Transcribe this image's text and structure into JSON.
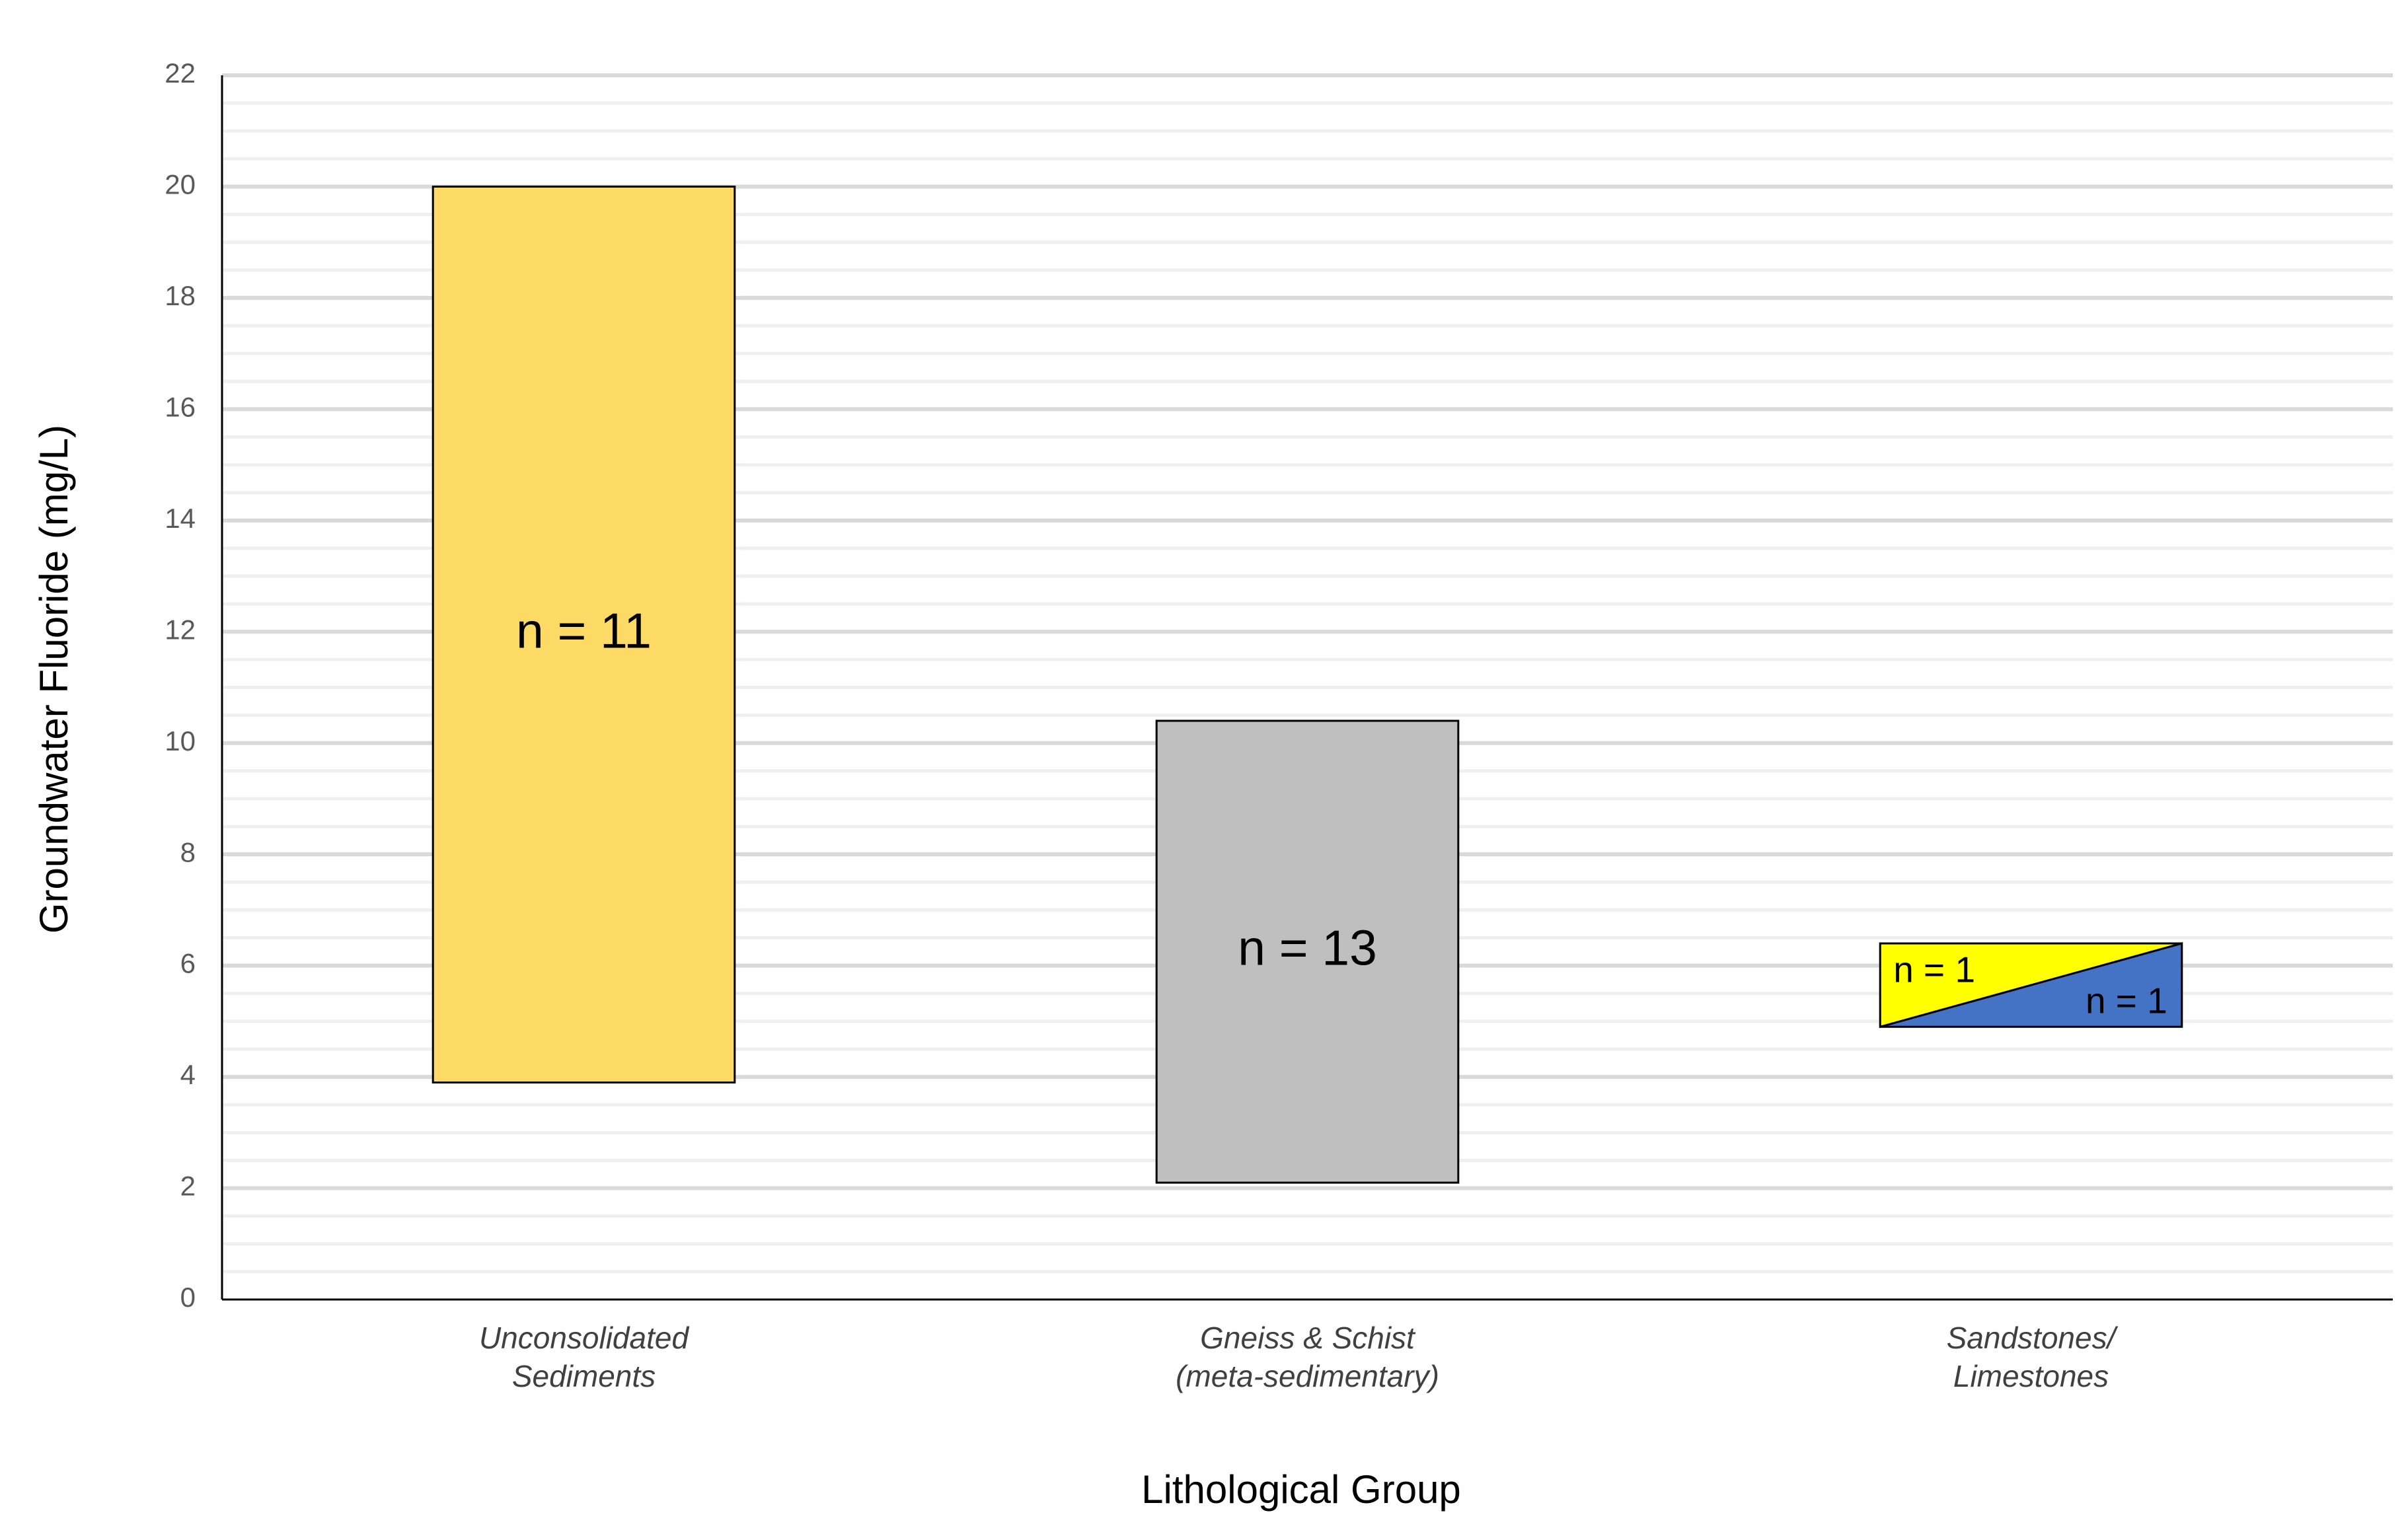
{
  "chart_data": {
    "type": "floating_bar",
    "x_label": "Lithological Group",
    "y_label": "Groundwater Fluoride (mg/L)",
    "categories": [
      [
        "Unconsolidated",
        "Sediments"
      ],
      [
        "Gneiss & Schist",
        "(meta-sedimentary)"
      ],
      [
        "Sandstones/",
        "Limestones"
      ]
    ],
    "low": [
      3.9,
      2.1,
      4.9
    ],
    "high": [
      20,
      10.4,
      6.4
    ],
    "colors": [
      [
        "#fdd966"
      ],
      [
        "#bfbfbf"
      ],
      [
        "#ffff00",
        "#4472c4"
      ]
    ],
    "labels": [
      [
        "n = 11"
      ],
      [
        "n = 13"
      ],
      [
        "n = 1",
        "n = 1"
      ]
    ],
    "ylim": [
      0,
      22
    ],
    "yticks": [
      0,
      2,
      4,
      6,
      8,
      10,
      12,
      14,
      16,
      18,
      20,
      22
    ],
    "grid": {
      "major": true,
      "minor_step": 0.5
    }
  }
}
